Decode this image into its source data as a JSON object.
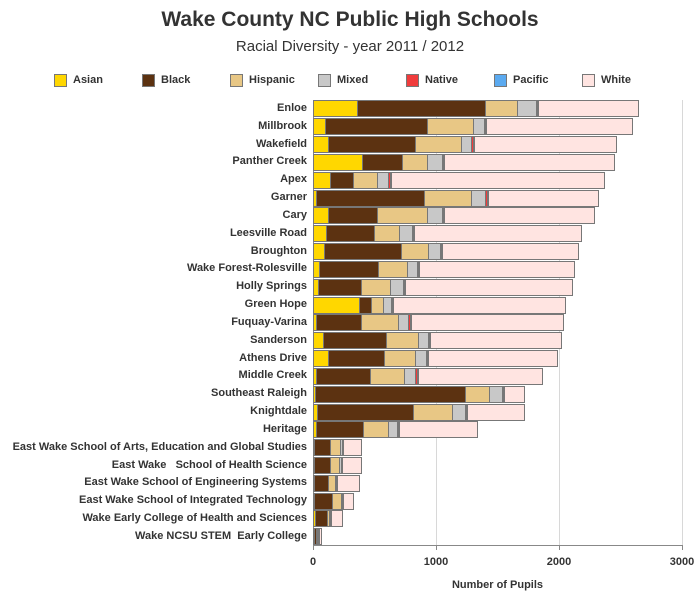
{
  "header": {
    "title": "Wake County NC Public High Schools",
    "subtitle": "Racial Diversity - year 2011 / 2012"
  },
  "legend": [
    {
      "label": "Asian",
      "color": "#FFD700"
    },
    {
      "label": "Black",
      "color": "#5C3211"
    },
    {
      "label": "Hispanic",
      "color": "#E8C785"
    },
    {
      "label": "Mixed",
      "color": "#C8C8C8"
    },
    {
      "label": "Native",
      "color": "#F03C3C"
    },
    {
      "label": "Pacific",
      "color": "#5BAAF0"
    },
    {
      "label": "White",
      "color": "#FFE4E1"
    }
  ],
  "axis": {
    "xlabel": "Number of Pupils",
    "ticks": [
      "0",
      "1000",
      "2000",
      "3000"
    ]
  },
  "chart_data": {
    "type": "bar",
    "orientation": "horizontal",
    "stacked": true,
    "title": "Wake County NC Public High Schools",
    "subtitle": "Racial Diversity - year 2011 / 2012",
    "xlabel": "Number of Pupils",
    "ylabel": "",
    "xlim": [
      0,
      3000
    ],
    "xticks": [
      0,
      1000,
      2000,
      3000
    ],
    "grid": "vertical",
    "legend_position": "top",
    "categories": [
      "Enloe",
      "Millbrook",
      "Wakefield",
      "Panther Creek",
      "Apex",
      "Garner",
      "Cary",
      "Leesville Road",
      "Broughton",
      "Wake Forest-Rolesville",
      "Holly Springs",
      "Green Hope",
      "Fuquay-Varina",
      "Sanderson",
      "Athens Drive",
      "Middle Creek",
      "Southeast Raleigh",
      "Knightdale",
      "Heritage",
      "East Wake School of Arts, Education and Global Studies",
      "East Wake   School of Health Science",
      "East Wake School of Engineering Systems",
      "East Wake School of Integrated Technology",
      "Wake Early College of Health and Sciences",
      "Wake NCSU STEM  Early College"
    ],
    "series": [
      {
        "name": "Asian",
        "color": "#FFD700",
        "values": [
          366,
          106,
          130,
          407,
          146,
          33,
          130,
          114,
          98,
          57,
          49,
          382,
          33,
          89,
          130,
          33,
          24,
          41,
          33,
          4,
          4,
          4,
          4,
          24,
          2
        ]
      },
      {
        "name": "Black",
        "color": "#5C3211",
        "values": [
          1041,
          829,
          707,
          325,
          187,
          878,
          398,
          390,
          626,
          480,
          350,
          98,
          366,
          512,
          455,
          439,
          1220,
          780,
          382,
          130,
          130,
          114,
          146,
          98,
          16
        ]
      },
      {
        "name": "Hispanic",
        "color": "#E8C785",
        "values": [
          260,
          374,
          374,
          203,
          195,
          382,
          407,
          203,
          220,
          236,
          236,
          98,
          301,
          260,
          252,
          276,
          195,
          317,
          203,
          81,
          73,
          57,
          73,
          16,
          8
        ]
      },
      {
        "name": "Mixed",
        "color": "#C8C8C8",
        "values": [
          154,
          89,
          81,
          122,
          89,
          114,
          122,
          106,
          98,
          81,
          106,
          65,
          81,
          81,
          89,
          89,
          106,
          106,
          73,
          16,
          16,
          8,
          8,
          8,
          2
        ]
      },
      {
        "name": "Native",
        "color": "#F03C3C",
        "values": [
          3,
          8,
          16,
          4,
          16,
          16,
          4,
          4,
          4,
          8,
          8,
          4,
          16,
          4,
          8,
          16,
          8,
          4,
          8,
          2,
          2,
          2,
          2,
          2,
          1
        ]
      },
      {
        "name": "Pacific",
        "color": "#5BAAF0",
        "values": [
          1,
          2,
          1,
          2,
          1,
          1,
          8,
          2,
          8,
          1,
          1,
          8,
          1,
          1,
          1,
          1,
          1,
          1,
          1,
          0,
          0,
          0,
          0,
          0,
          0
        ]
      },
      {
        "name": "White",
        "color": "#FFE4E1",
        "values": [
          813,
          1187,
          1154,
          1382,
          1732,
          894,
          1219,
          1357,
          1106,
          1260,
          1357,
          1398,
          1236,
          1065,
          1049,
          1008,
          163,
          463,
          634,
          146,
          155,
          179,
          81,
          89,
          16
        ]
      }
    ]
  }
}
